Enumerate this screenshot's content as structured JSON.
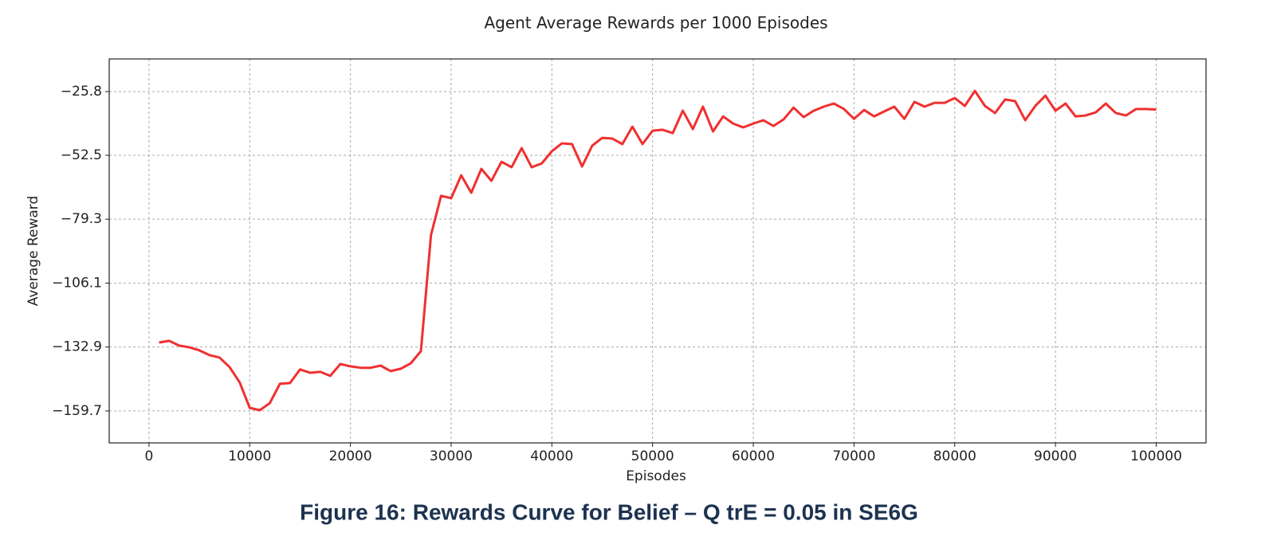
{
  "chart_data": {
    "type": "line",
    "title": "Agent Average Rewards per 1000 Episodes",
    "x_label": "Episodes",
    "y_label": "Average Reward",
    "x": [
      1000,
      2000,
      3000,
      4000,
      5000,
      6000,
      7000,
      8000,
      9000,
      10000,
      11000,
      12000,
      13000,
      14000,
      15000,
      16000,
      17000,
      18000,
      19000,
      20000,
      21000,
      22000,
      23000,
      24000,
      25000,
      26000,
      27000,
      28000,
      29000,
      30000,
      31000,
      32000,
      33000,
      34000,
      35000,
      36000,
      37000,
      38000,
      39000,
      40000,
      41000,
      42000,
      43000,
      44000,
      45000,
      46000,
      47000,
      48000,
      49000,
      50000,
      51000,
      52000,
      53000,
      54000,
      55000,
      56000,
      57000,
      58000,
      59000,
      60000,
      61000,
      62000,
      63000,
      64000,
      65000,
      66000,
      67000,
      68000,
      69000,
      70000,
      71000,
      72000,
      73000,
      74000,
      75000,
      76000,
      77000,
      78000,
      79000,
      80000,
      81000,
      82000,
      83000,
      84000,
      85000,
      86000,
      87000,
      88000,
      89000,
      90000,
      91000,
      92000,
      93000,
      94000,
      95000,
      96000,
      97000,
      98000,
      99000,
      100000
    ],
    "series": [
      {
        "name": "Average Reward",
        "color": "#f03030",
        "values": [
          -131.0,
          -130.3,
          -132.3,
          -133.0,
          -134.3,
          -136.3,
          -137.3,
          -141.3,
          -147.7,
          -158.4,
          -159.4,
          -156.4,
          -148.3,
          -148.0,
          -142.3,
          -143.7,
          -143.3,
          -145.0,
          -140.0,
          -141.0,
          -141.6,
          -141.6,
          -140.7,
          -143.0,
          -142.0,
          -139.7,
          -134.6,
          -85.9,
          -69.5,
          -70.5,
          -60.9,
          -68.2,
          -58.2,
          -63.2,
          -55.2,
          -57.5,
          -49.5,
          -57.5,
          -55.9,
          -50.8,
          -47.5,
          -47.8,
          -57.2,
          -48.5,
          -45.2,
          -45.5,
          -47.8,
          -40.5,
          -47.8,
          -42.2,
          -41.8,
          -43.2,
          -33.8,
          -41.5,
          -32.1,
          -42.5,
          -36.2,
          -39.2,
          -40.8,
          -39.2,
          -37.8,
          -40.2,
          -37.5,
          -32.5,
          -36.5,
          -33.8,
          -32.1,
          -30.8,
          -33.1,
          -37.2,
          -33.5,
          -36.2,
          -34.1,
          -32.1,
          -37.2,
          -30.1,
          -32.1,
          -30.5,
          -30.5,
          -28.5,
          -31.8,
          -25.5,
          -31.8,
          -34.8,
          -29.1,
          -29.8,
          -37.8,
          -31.8,
          -27.5,
          -33.8,
          -30.8,
          -36.2,
          -35.8,
          -34.5,
          -30.8,
          -34.8,
          -35.8,
          -33.1,
          -33.1,
          -33.3
        ]
      }
    ],
    "xlim": [
      -3950,
      104950
    ],
    "ylim": [
      -173.1,
      -12.1
    ],
    "xticks": [
      0,
      10000,
      20000,
      30000,
      40000,
      50000,
      60000,
      70000,
      80000,
      90000,
      100000
    ],
    "yticks": [
      {
        "value": -25.8,
        "label": "−25.8"
      },
      {
        "value": -52.5,
        "label": "−52.5"
      },
      {
        "value": -79.3,
        "label": "−79.3"
      },
      {
        "value": -106.1,
        "label": "−106.1"
      },
      {
        "value": -132.9,
        "label": "−132.9"
      },
      {
        "value": -159.7,
        "label": "−159.7"
      }
    ],
    "grid": true
  },
  "caption": "Figure 16: Rewards Curve for Belief – Q trE = 0.05 in SE6G"
}
